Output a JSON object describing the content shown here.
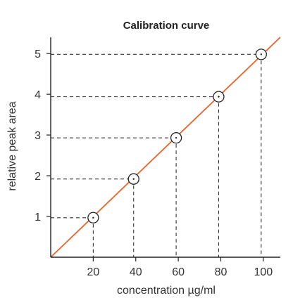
{
  "chart_data": {
    "type": "scatter",
    "title": "Calibration curve",
    "xlabel": "concentration µg/ml",
    "ylabel": "relative peak area",
    "xlim": [
      0,
      108
    ],
    "ylim": [
      0,
      5.4
    ],
    "x_ticks": [
      20,
      40,
      60,
      80,
      100
    ],
    "y_ticks": [
      1,
      2,
      3,
      4,
      5
    ],
    "x_tick_labels": [
      "20",
      "40",
      "60",
      "80",
      "100"
    ],
    "y_tick_labels": [
      "1",
      "2",
      "3",
      "4",
      "5"
    ],
    "points": [
      {
        "x": 20,
        "y": 0.97
      },
      {
        "x": 39,
        "y": 1.92
      },
      {
        "x": 59,
        "y": 2.93
      },
      {
        "x": 79,
        "y": 3.94
      },
      {
        "x": 99,
        "y": 4.98
      }
    ],
    "fit_line": {
      "x": [
        0,
        108
      ],
      "y": [
        0,
        5.4
      ]
    },
    "grid": false,
    "guide_lines": true,
    "colors": {
      "fit_line": "#e8642a",
      "points": "#222222",
      "axes": "#222222"
    }
  }
}
